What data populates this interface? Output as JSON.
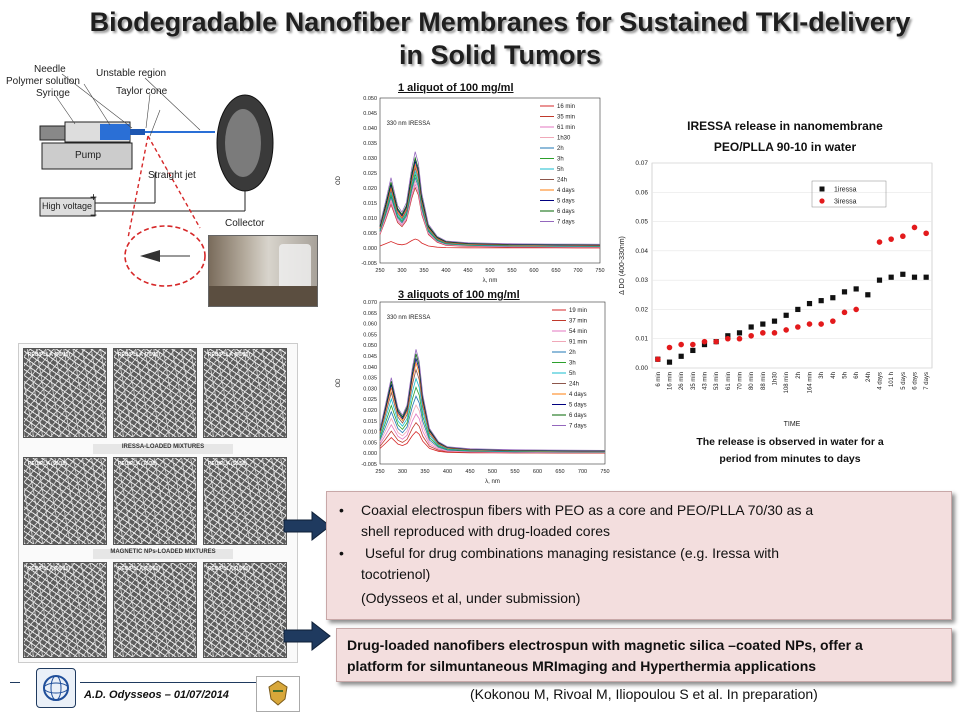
{
  "title": {
    "line1": "Biodegradable Nanofiber Membranes for Sustained TKI-delivery",
    "line2": "in Solid Tumors"
  },
  "diagram": {
    "needle": "Needle",
    "polymer_solution": "Polymer solution",
    "syringe": "Syringe",
    "unstable_region": "Unstable region",
    "taylor_cone": "Taylor cone",
    "pump": "Pump",
    "straight_jet": "Straight jet",
    "high_voltage": "High voltage",
    "plus": "+",
    "minus": "−",
    "collector": "Collector"
  },
  "sem": {
    "top_labels": [
      "PEO/PLLA (90/10)",
      "PEO/PLLA (70/30)",
      "PEO/PLLA (50/50)"
    ],
    "section2": "IRESSA-LOADED MIXTURES",
    "mid_labels": [
      "PEO/PLA (90/10)",
      "PEO/PLA (70/30)",
      "PEO/PLA (50/50)"
    ],
    "section3": "MAGNETIC NPs-LOADED MIXTURES",
    "bot_labels": [
      "PEO/PLLA (90/10)",
      "PEO/PLLA (50/50)",
      "PEO/PLLA (10/90)"
    ]
  },
  "chart_data": [
    {
      "type": "line",
      "title": "1 aliquot of 100 mg/ml",
      "annotation": "330 nm IRESSA",
      "xlabel": "λ, nm",
      "ylabel": "OD",
      "xlim": [
        250,
        750
      ],
      "ylim": [
        -0.005,
        0.05
      ],
      "xticks": [
        250,
        300,
        350,
        400,
        450,
        500,
        550,
        600,
        650,
        700,
        750
      ],
      "yticks": [
        "-0.005",
        "0.000",
        "0.005",
        "0.010",
        "0.015",
        "0.020",
        "0.025",
        "0.030",
        "0.035",
        "0.040",
        "0.045",
        "0.050"
      ],
      "legend_position": "top-right",
      "x": [
        250,
        262,
        275,
        290,
        300,
        310,
        322,
        330,
        337,
        345,
        360,
        380,
        400,
        450,
        500,
        550,
        600,
        650,
        700,
        750
      ],
      "series": [
        {
          "name": "16 min",
          "color": "#d62728",
          "peak": 0.003
        },
        {
          "name": "35 min",
          "color": "#c0392b",
          "peak": 0.02
        },
        {
          "name": "61 min",
          "color": "#e377c2",
          "peak": 0.021
        },
        {
          "name": "1h30",
          "color": "#f0a8b8",
          "peak": 0.022
        },
        {
          "name": "2h",
          "color": "#1f77b4",
          "peak": 0.023
        },
        {
          "name": "3h",
          "color": "#2ca02c",
          "peak": 0.024
        },
        {
          "name": "5h",
          "color": "#17becf",
          "peak": 0.025
        },
        {
          "name": "24h",
          "color": "#8c564b",
          "peak": 0.026
        },
        {
          "name": "4 days",
          "color": "#ff7f0e",
          "peak": 0.027
        },
        {
          "name": "5 days",
          "color": "#000080",
          "peak": 0.028
        },
        {
          "name": "6 days",
          "color": "#006400",
          "peak": 0.029
        },
        {
          "name": "7 days",
          "color": "#9467bd",
          "peak": 0.031
        }
      ]
    },
    {
      "type": "line",
      "title": "3 aliquots of 100 mg/ml",
      "annotation": "330 nm IRESSA",
      "xlabel": "λ, nm",
      "ylabel": "OD",
      "xlim": [
        250,
        750
      ],
      "ylim": [
        -0.005,
        0.07
      ],
      "xticks": [
        250,
        300,
        350,
        400,
        450,
        500,
        550,
        600,
        650,
        700,
        750
      ],
      "yticks": [
        "-0.005",
        "0.000",
        "0.005",
        "0.010",
        "0.015",
        "0.020",
        "0.025",
        "0.030",
        "0.035",
        "0.040",
        "0.045",
        "0.050",
        "0.055",
        "0.060",
        "0.065",
        "0.070"
      ],
      "legend_position": "top-right",
      "x": [
        250,
        262,
        275,
        290,
        300,
        310,
        322,
        330,
        337,
        345,
        360,
        380,
        400,
        450,
        500,
        550,
        600,
        650,
        700,
        750
      ],
      "series": [
        {
          "name": "19 min",
          "color": "#d62728",
          "peak": 0.01
        },
        {
          "name": "37 min",
          "color": "#c0392b",
          "peak": 0.014
        },
        {
          "name": "54 min",
          "color": "#e377c2",
          "peak": 0.018
        },
        {
          "name": "91 min",
          "color": "#f0a8b8",
          "peak": 0.022
        },
        {
          "name": "2h",
          "color": "#1f77b4",
          "peak": 0.026
        },
        {
          "name": "3h",
          "color": "#2ca02c",
          "peak": 0.03
        },
        {
          "name": "5h",
          "color": "#17becf",
          "peak": 0.034
        },
        {
          "name": "24h",
          "color": "#8c564b",
          "peak": 0.038
        },
        {
          "name": "4 days",
          "color": "#ff7f0e",
          "peak": 0.041
        },
        {
          "name": "5 days",
          "color": "#000080",
          "peak": 0.043
        },
        {
          "name": "6 days",
          "color": "#006400",
          "peak": 0.045
        },
        {
          "name": "7 days",
          "color": "#9467bd",
          "peak": 0.047
        }
      ]
    },
    {
      "type": "scatter",
      "title": "IRESSA release in nanomembrane PEO/PLLA 90-10 in water",
      "title_line1": "IRESSA release in nanomembrane",
      "title_line2": "PEO/PLLA 90-10 in water",
      "xlabel": "TIME",
      "ylabel": "Δ DO (400-330nm)",
      "ylim": [
        0,
        0.07
      ],
      "yticks": [
        "0.00",
        "0.01",
        "0.02",
        "0.03",
        "0.04",
        "0.05",
        "0.06",
        "0.07"
      ],
      "legend_position": "top-left",
      "categories": [
        "6 min",
        "16 min",
        "26 min",
        "35 min",
        "43 min",
        "53 min",
        "61 min",
        "70 min",
        "80 min",
        "88 min",
        "1h30",
        "108 min",
        "2h",
        "164 min",
        "3h",
        "4h",
        "5h",
        "6h",
        "24h",
        "4 days",
        "101 h",
        "5 days",
        "6 days",
        "7 days"
      ],
      "series": [
        {
          "name": "1iressa",
          "color": "#111111",
          "marker": "square",
          "values": [
            0.003,
            0.002,
            0.004,
            0.006,
            0.008,
            0.009,
            0.011,
            0.012,
            0.014,
            0.015,
            0.016,
            0.018,
            0.02,
            0.022,
            0.023,
            0.024,
            0.026,
            0.027,
            0.025,
            0.03,
            0.031,
            0.032,
            0.031,
            0.031
          ]
        },
        {
          "name": "3iressa",
          "color": "#e31a1c",
          "marker": "circle",
          "values": [
            0.003,
            0.007,
            0.008,
            0.008,
            0.009,
            0.009,
            0.01,
            0.01,
            0.011,
            0.012,
            0.012,
            0.013,
            0.014,
            0.015,
            0.015,
            0.016,
            0.019,
            0.02,
            null,
            0.043,
            0.044,
            0.045,
            0.048,
            0.046
          ]
        }
      ],
      "caption_line1": "The release is observed in water for a",
      "caption_line2": "period from minutes to days"
    }
  ],
  "box1": {
    "bullet1_line1": "Coaxial electrospun fibers with PEO as a core and PEO/PLLA 70/30 as a",
    "bullet1_line2": "shell reproduced with drug-loaded cores",
    "bullet2_line1": "Useful for drug combinations managing resistance (e.g. Iressa  with",
    "bullet2_line2": "tocotrienol)",
    "citation": "(Odysseos et al, under submission)"
  },
  "box2": {
    "line1": "Drug-loaded nanofibers electrospun with magnetic silica –coated NPs, offer a",
    "line2": "platform for silmuntaneous  MRImaging and Hyperthermia applications"
  },
  "footer": {
    "author": "A.D. Odysseos – 01/07/2014",
    "reference": "(Kokonou M, Rivoal M, Iliopoulou S et al. In preparation)"
  },
  "colors": {
    "box_bg": "#f3dede",
    "arrow": "#1f3a5f",
    "dash_circle": "#d62728"
  }
}
